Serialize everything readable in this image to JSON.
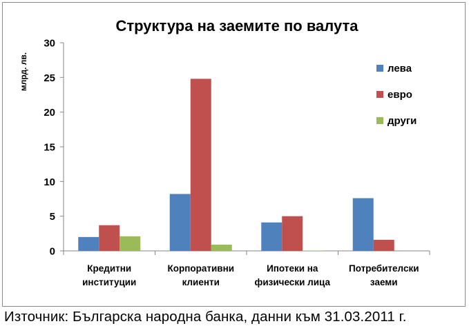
{
  "chart_data": {
    "type": "bar",
    "title": "Структура на заемите по валута",
    "ylabel": "млрд. лв.",
    "xlabel": "",
    "ylim": [
      0,
      30
    ],
    "yticks": [
      0,
      5,
      10,
      15,
      20,
      25,
      30
    ],
    "categories": [
      [
        "Кредитни",
        "институции"
      ],
      [
        "Корпоративни",
        "клиенти"
      ],
      [
        "Ипотеки на",
        "физически лица"
      ],
      [
        "Потребителски",
        "заеми"
      ]
    ],
    "series": [
      {
        "name": "лева",
        "color": "#4F81BD",
        "values": [
          2.0,
          8.2,
          4.1,
          7.6
        ]
      },
      {
        "name": "евро",
        "color": "#C0504D",
        "values": [
          3.7,
          24.8,
          5.0,
          1.6
        ]
      },
      {
        "name": "други",
        "color": "#9BBB59",
        "values": [
          2.1,
          0.9,
          0.05,
          0.0
        ]
      }
    ],
    "grid": false,
    "legend": "right"
  },
  "footer": {
    "source": "Източник: Българска народна банка, данни към 31.03.2011 г."
  }
}
